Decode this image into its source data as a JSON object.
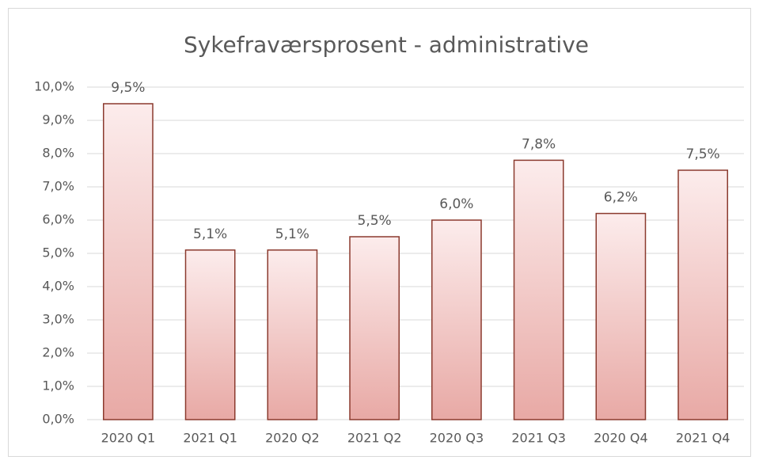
{
  "chart_data": {
    "type": "bar",
    "title": "Sykefraværsprosent - administrative",
    "categories": [
      "2020 Q1",
      "2021 Q1",
      "2020 Q2",
      "2021 Q2",
      "2020 Q3",
      "2021 Q3",
      "2020 Q4",
      "2021 Q4"
    ],
    "values": [
      9.5,
      5.1,
      5.1,
      5.5,
      6.0,
      7.8,
      6.2,
      7.5
    ],
    "value_labels": [
      "9,5%",
      "5,1%",
      "5,1%",
      "5,5%",
      "6,0%",
      "7,8%",
      "6,2%",
      "7,5%"
    ],
    "color": "#e8a9a5",
    "ylim": [
      0,
      10
    ],
    "yticks": [
      {
        "value": 0,
        "label": "0,0%"
      },
      {
        "value": 1,
        "label": "1,0%"
      },
      {
        "value": 2,
        "label": "2,0%"
      },
      {
        "value": 3,
        "label": "3,0%"
      },
      {
        "value": 4,
        "label": "4,0%"
      },
      {
        "value": 5,
        "label": "5,0%"
      },
      {
        "value": 6,
        "label": "6,0%"
      },
      {
        "value": 7,
        "label": "7,0%"
      },
      {
        "value": 8,
        "label": "8,0%"
      },
      {
        "value": 9,
        "label": "9,0%"
      },
      {
        "value": 10,
        "label": "10,0%"
      }
    ],
    "grid": true
  }
}
